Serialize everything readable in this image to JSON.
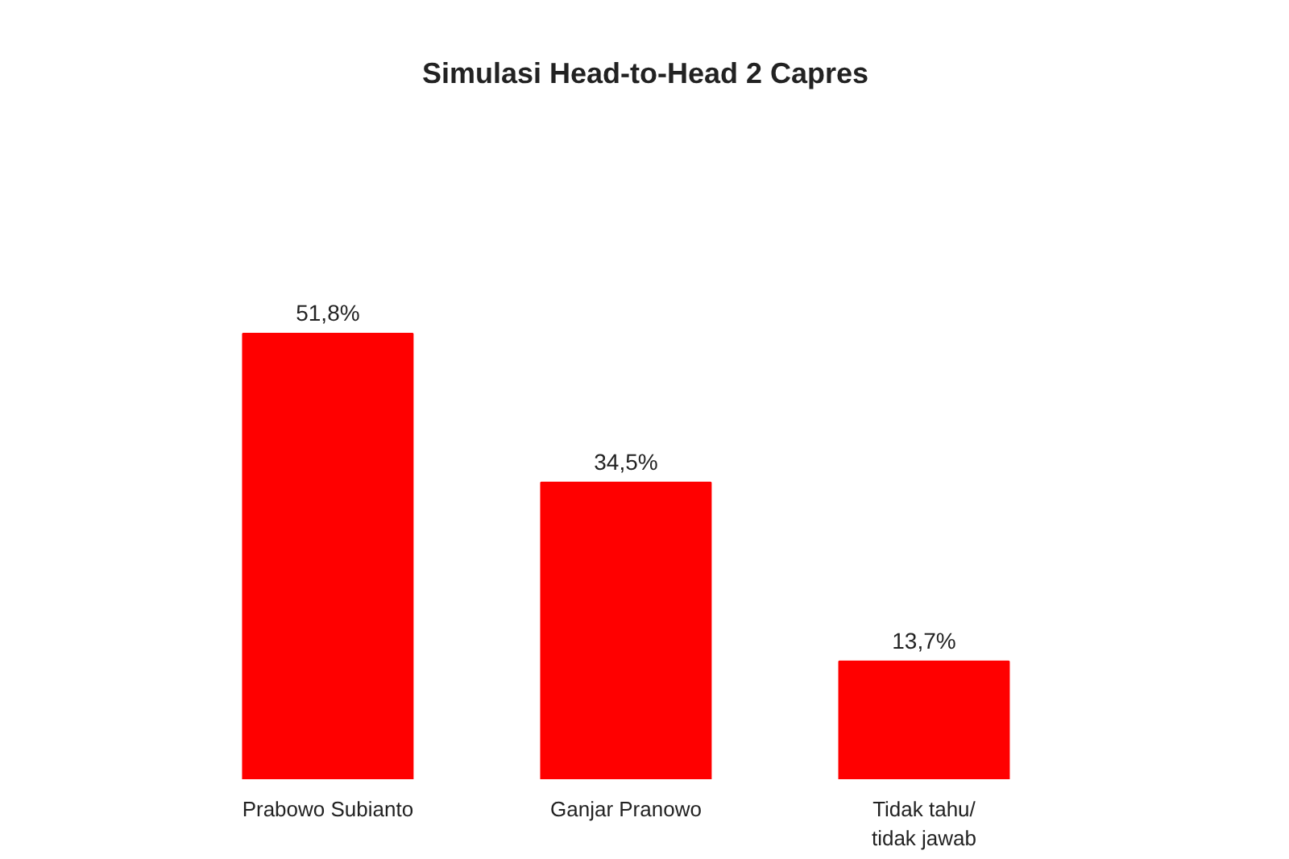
{
  "chart_data": {
    "type": "bar",
    "title": "Simulasi Head-to-Head 2 Capres",
    "categories": [
      "Prabowo Subianto",
      "Ganjar Pranowo",
      "Tidak tahu/\ntidak jawab"
    ],
    "values": [
      51.8,
      34.5,
      13.7
    ],
    "value_labels": [
      "51,8%",
      "34,5%",
      "13,7%"
    ],
    "color": "#ff0000"
  }
}
